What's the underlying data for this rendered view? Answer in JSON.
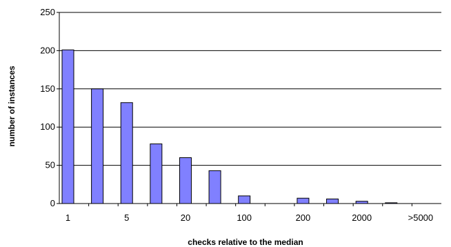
{
  "chart_data": {
    "type": "bar",
    "title": "",
    "xlabel": "checks relative to the median",
    "ylabel": "number of instances",
    "ylim": [
      0,
      250
    ],
    "yticks": [
      0,
      50,
      100,
      150,
      200,
      250
    ],
    "grid": true,
    "legend": "none",
    "bar_color": "#8080ff",
    "bar_edge_color": "#000000",
    "categories": [
      "1",
      "",
      "5",
      "",
      "20",
      "",
      "100",
      "",
      "200",
      "",
      "2000",
      "",
      ">5000"
    ],
    "x_tick_labels": [
      "1",
      "5",
      "20",
      "100",
      "200",
      "2000",
      ">5000"
    ],
    "values": [
      201,
      150,
      132,
      78,
      60,
      43,
      10,
      0,
      7,
      6,
      3,
      1,
      0
    ]
  }
}
